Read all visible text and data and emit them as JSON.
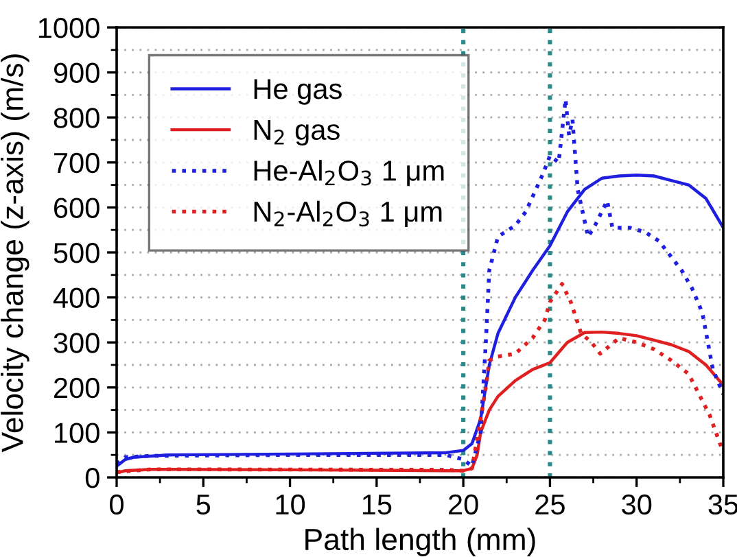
{
  "chart_data": {
    "type": "line",
    "xlabel": "Path length (mm)",
    "ylabel": "Velocity change (z-axis) (m/s)",
    "xlim": [
      0,
      35
    ],
    "ylim": [
      0,
      1000
    ],
    "xticks": [
      0,
      5,
      10,
      15,
      20,
      25,
      30,
      35
    ],
    "yticks": [
      0,
      100,
      200,
      300,
      400,
      500,
      600,
      700,
      800,
      900,
      1000
    ],
    "grid": "y",
    "legend": "top left",
    "ref_lines": [
      {
        "axis": "x",
        "value": 20,
        "color": "#2a8a8a",
        "line_style": "dotted"
      },
      {
        "axis": "x",
        "value": 25,
        "color": "#2a8a8a",
        "line_style": "dotted"
      }
    ],
    "series": [
      {
        "name": "He gas",
        "color": "#1f1fe0",
        "line_style": "solid",
        "x": [
          0,
          0.5,
          1,
          3,
          10,
          19,
          20,
          20.5,
          21,
          21.5,
          22,
          23,
          24,
          25,
          26,
          27,
          28,
          29,
          30,
          31,
          32,
          33,
          34,
          35
        ],
        "values": [
          25,
          40,
          45,
          50,
          52,
          55,
          60,
          75,
          130,
          250,
          320,
          400,
          460,
          515,
          590,
          640,
          665,
          670,
          672,
          670,
          660,
          650,
          620,
          555
        ]
      },
      {
        "name": "N$_{2}$ gas",
        "color": "#e02020",
        "line_style": "solid",
        "x": [
          0,
          0.5,
          2,
          10,
          19,
          20,
          20.5,
          20.8,
          21,
          21.5,
          22,
          23,
          24,
          25,
          26,
          27,
          28,
          29,
          30,
          31,
          32,
          33,
          34,
          35
        ],
        "values": [
          10,
          15,
          18,
          17,
          15,
          15,
          20,
          50,
          100,
          150,
          180,
          215,
          240,
          255,
          300,
          322,
          323,
          320,
          315,
          305,
          295,
          280,
          250,
          205
        ]
      },
      {
        "name": "He-Al$_{2}$O$_{3}$ 1 μm",
        "color": "#1f1fe0",
        "line_style": "dotted",
        "x": [
          0,
          0.5,
          2,
          10,
          19,
          20,
          20.5,
          21,
          21.3,
          21.5,
          22,
          23,
          23.6,
          24.6,
          25,
          25.5,
          25.9,
          26.1,
          26.3,
          26.6,
          27.2,
          27.6,
          28.3,
          28.6,
          29.6,
          30.5,
          31.3,
          32.6,
          33.2,
          33.8,
          34.4,
          35
        ],
        "values": [
          30,
          45,
          48,
          50,
          50,
          40,
          25,
          100,
          300,
          460,
          535,
          560,
          590,
          675,
          715,
          700,
          840,
          760,
          795,
          640,
          535,
          560,
          615,
          555,
          555,
          545,
          525,
          460,
          420,
          365,
          240,
          185
        ]
      },
      {
        "name": "N$_{2}$-Al$_{2}$O$_{3}$ 1 μm",
        "color": "#e02020",
        "line_style": "dotted",
        "x": [
          0,
          2,
          19,
          20,
          20.5,
          21,
          21.3,
          21.5,
          21.9,
          23,
          24,
          24.7,
          25,
          25.7,
          26.2,
          26.8,
          27.4,
          27.9,
          29,
          30,
          31,
          32,
          33,
          34.2,
          35
        ],
        "values": [
          12,
          18,
          17,
          15,
          20,
          130,
          200,
          260,
          268,
          275,
          310,
          350,
          390,
          430,
          390,
          320,
          300,
          275,
          310,
          300,
          285,
          260,
          230,
          140,
          55
        ]
      }
    ]
  }
}
